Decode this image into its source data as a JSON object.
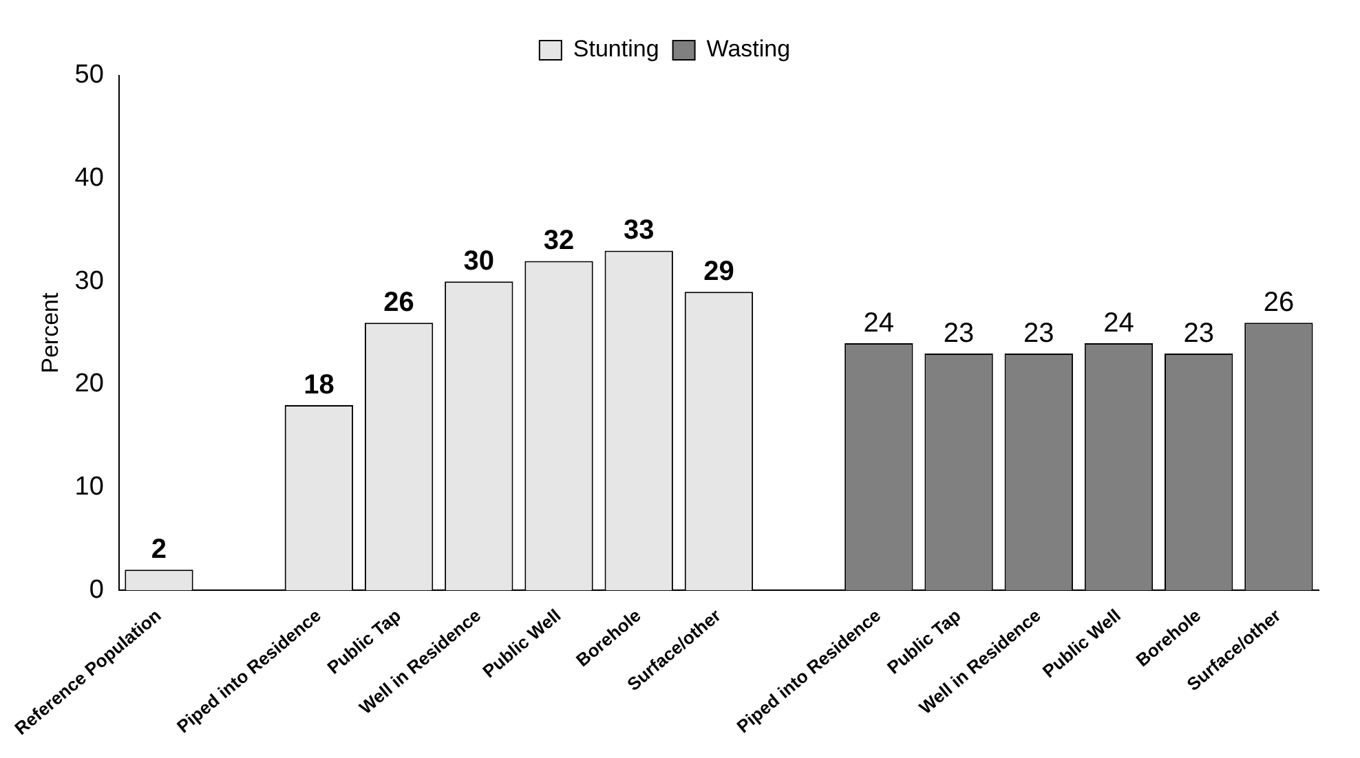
{
  "chart_data": {
    "type": "bar",
    "ylabel": "Percent",
    "categories": [
      "Reference Population",
      null,
      "Piped into Residence",
      "Public Tap",
      "Well in Residence",
      "Public Well",
      "Borehole",
      "Surface/other",
      null,
      "Piped into Residence",
      "Public Tap",
      "Well in Residence",
      "Public Well",
      "Borehole",
      "Surface/other"
    ],
    "series": [
      {
        "name": "Stunting",
        "color": "#e6e6e6",
        "values": [
          2,
          null,
          18,
          26,
          30,
          32,
          33,
          29,
          null,
          null,
          null,
          null,
          null,
          null,
          null
        ]
      },
      {
        "name": "Wasting",
        "color": "#808080",
        "values": [
          null,
          null,
          null,
          null,
          null,
          null,
          null,
          null,
          null,
          24,
          23,
          23,
          24,
          23,
          26
        ]
      }
    ],
    "ylim": [
      0,
      50
    ],
    "yticks": [
      0,
      10,
      20,
      30,
      40,
      50
    ],
    "grid": false,
    "legend": "top",
    "data_labels": true
  }
}
